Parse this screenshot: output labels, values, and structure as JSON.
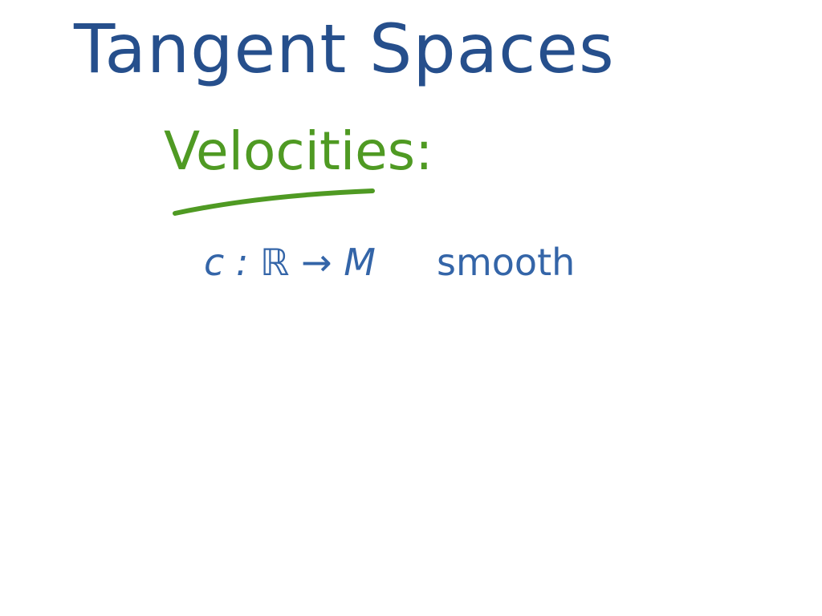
{
  "colors": {
    "background": "#ffffff",
    "title_ink": "#264f8c",
    "heading_ink": "#4f9a23",
    "body_ink": "#3465a8"
  },
  "slide": {
    "title": "Tangent Spaces",
    "heading": "Velocities:",
    "line1": {
      "map": "c : ℝ → M",
      "qualifier": "smooth"
    }
  }
}
